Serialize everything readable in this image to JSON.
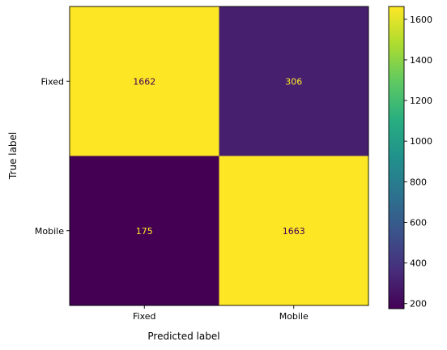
{
  "chart_data": {
    "type": "heatmap",
    "title": "",
    "xlabel": "Predicted label",
    "ylabel": "True label",
    "x_categories": [
      "Fixed",
      "Mobile"
    ],
    "y_categories": [
      "Fixed",
      "Mobile"
    ],
    "values": [
      [
        1662,
        306
      ],
      [
        175,
        1663
      ]
    ],
    "value_labels": [
      [
        "1662",
        "306"
      ],
      [
        "175",
        "1663"
      ]
    ],
    "colormap": "viridis",
    "colorbar": {
      "range": [
        175,
        1663
      ],
      "ticks": [
        200,
        400,
        600,
        800,
        1000,
        1200,
        1400,
        1600
      ],
      "tick_labels": [
        "200",
        "400",
        "600",
        "800",
        "1000",
        "1200",
        "1400",
        "1600"
      ]
    },
    "grid": false,
    "text_colors": {
      "on_dark": "#fde725",
      "on_light": "#440154"
    }
  }
}
